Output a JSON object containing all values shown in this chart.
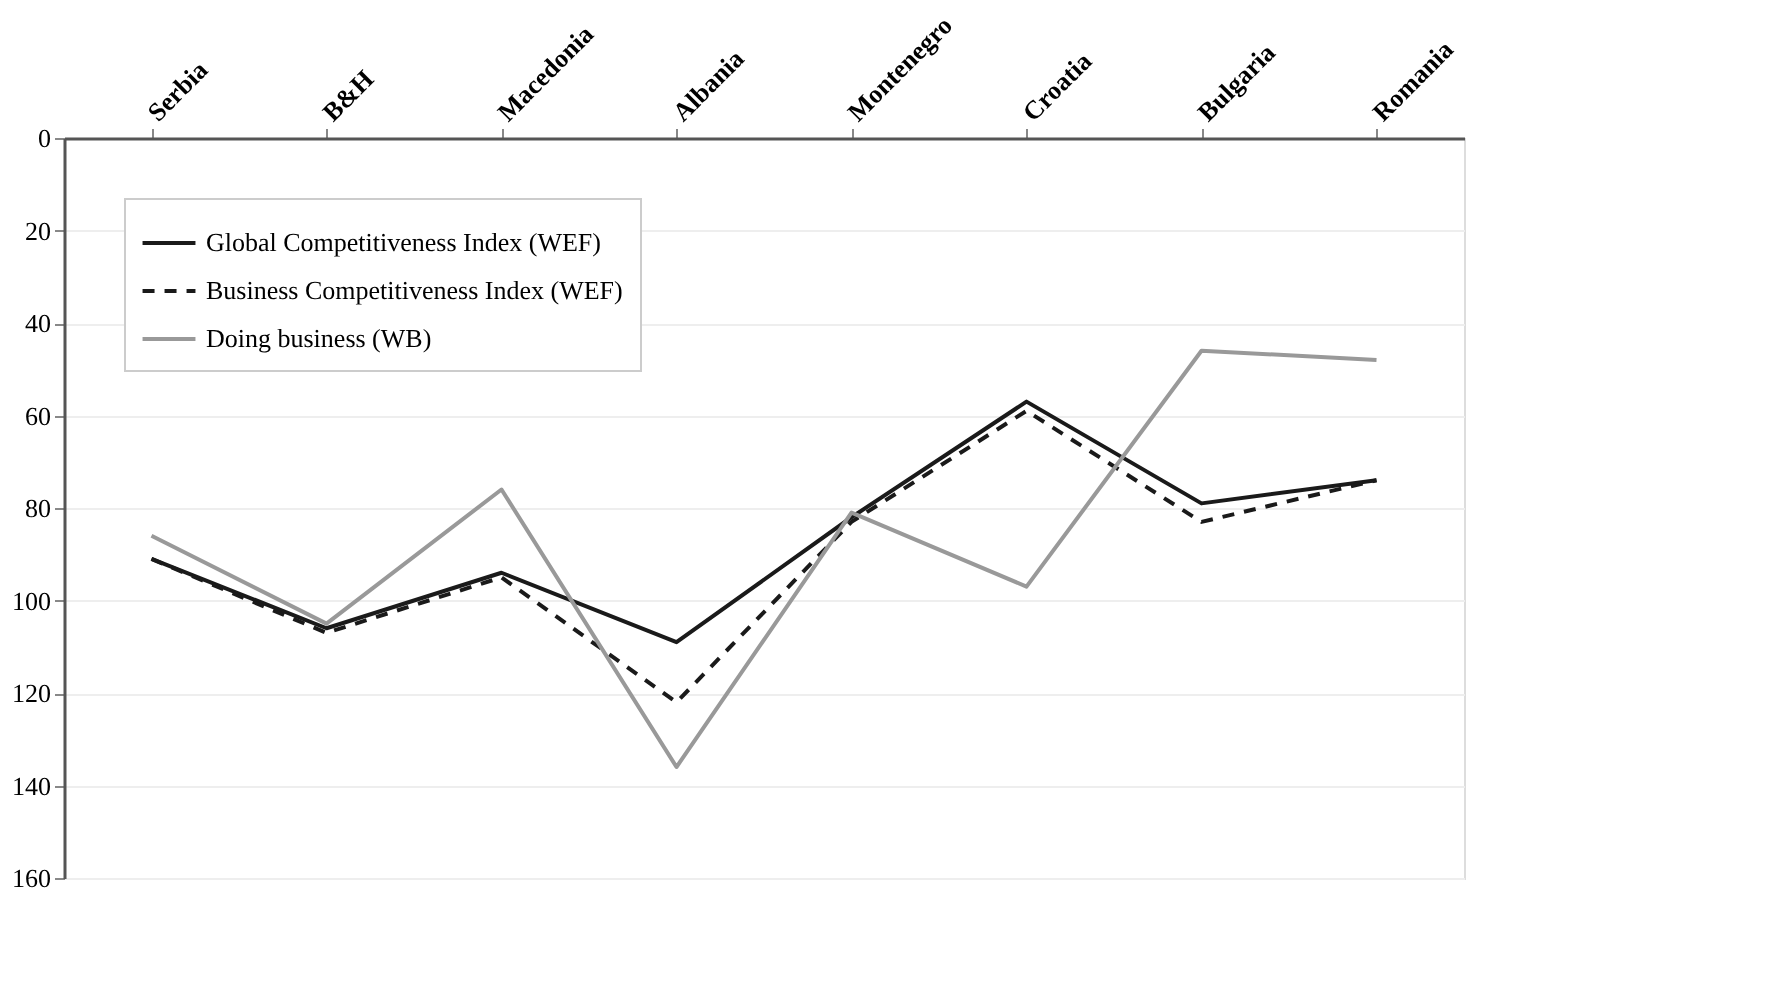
{
  "chart_data": {
    "type": "line",
    "categories": [
      "Serbia",
      "B&H",
      "Macedonia",
      "Albania",
      "Montenegro",
      "Croatia",
      "Bulgaria",
      "Romania"
    ],
    "series": [
      {
        "name": "Global Competitiveness Index (WEF)",
        "color": "#1a1a1a",
        "line_style": "solid",
        "values": [
          91,
          106,
          94,
          109,
          82,
          57,
          79,
          74
        ]
      },
      {
        "name": "Business Competitiveness Index (WEF)",
        "color": "#1a1a1a",
        "line_style": "dashed",
        "values": [
          91,
          107,
          95,
          122,
          83,
          59,
          83,
          74
        ]
      },
      {
        "name": "Doing business (WB)",
        "color": "#999999",
        "line_style": "solid",
        "values": [
          86,
          105,
          76,
          136,
          81,
          97,
          46,
          48
        ]
      }
    ],
    "ylim": [
      160,
      0
    ],
    "yticks": [
      0,
      20,
      40,
      60,
      80,
      100,
      120,
      140,
      160
    ],
    "grid": "y",
    "legend": "top left",
    "marker": "none"
  }
}
